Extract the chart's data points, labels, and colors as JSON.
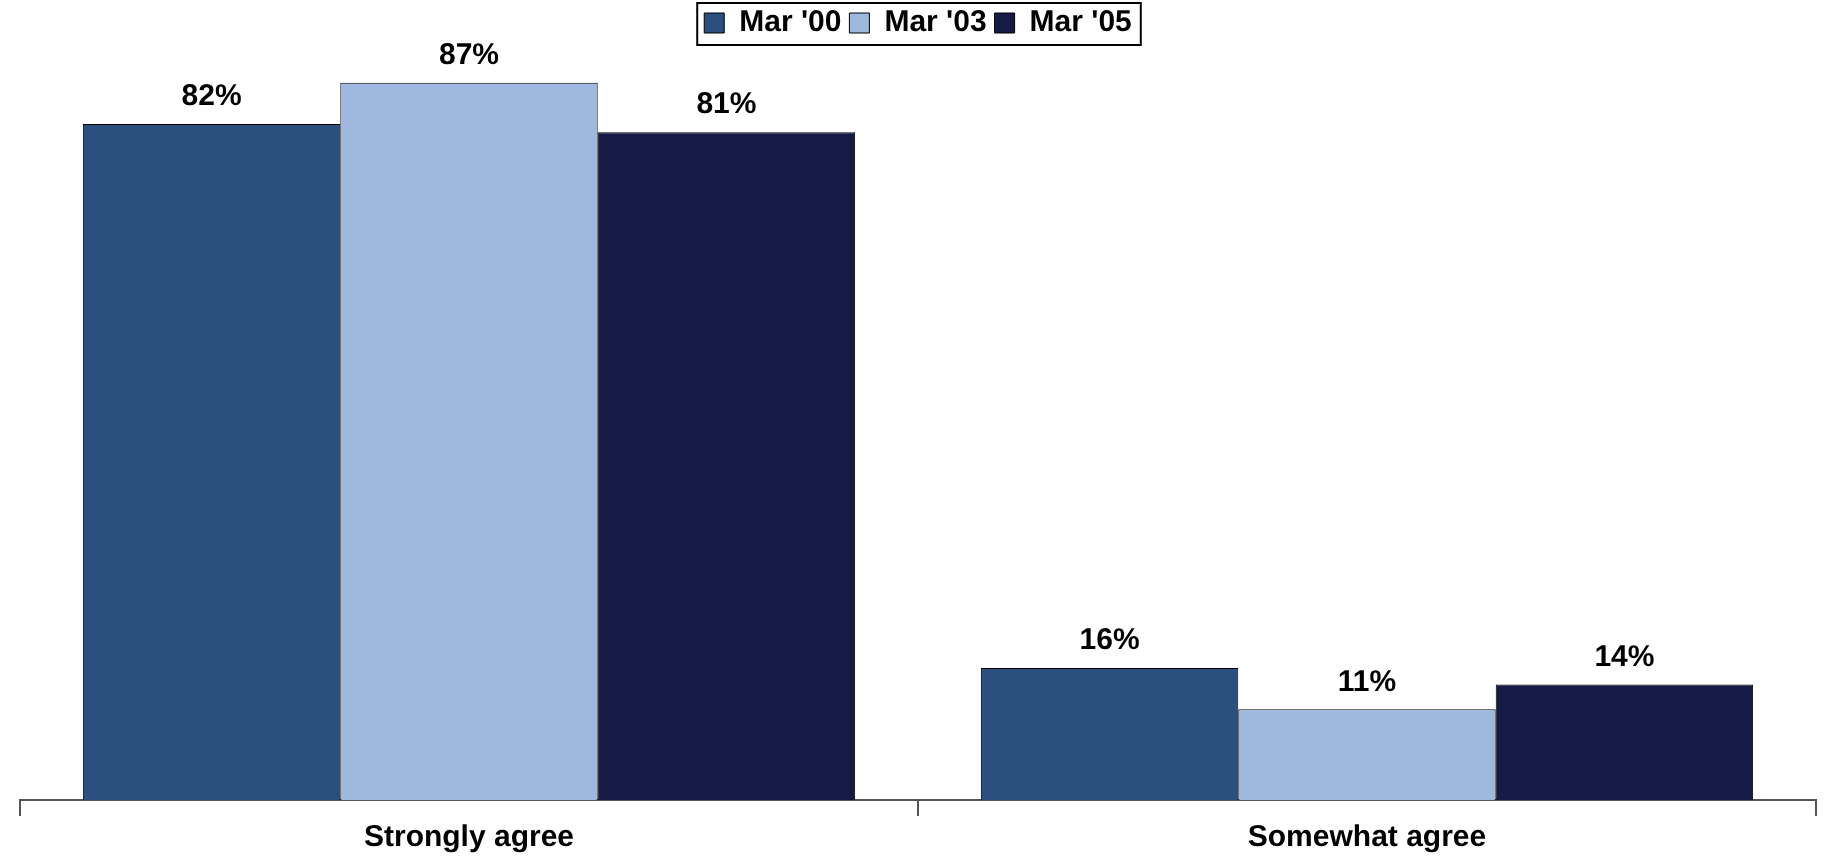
{
  "chart_data": {
    "type": "bar",
    "categories": [
      "Strongly agree",
      "Somewhat agree"
    ],
    "series": [
      {
        "name": "Mar '00",
        "color": "#2b4f7e",
        "values": [
          82,
          16
        ],
        "value_labels": [
          "82%",
          "16%"
        ]
      },
      {
        "name": "Mar '03",
        "color": "#9fb8de",
        "values": [
          87,
          11
        ],
        "value_labels": [
          "87%",
          "11%"
        ]
      },
      {
        "name": "Mar '05",
        "color": "#151b45",
        "values": [
          81,
          14
        ],
        "value_labels": [
          "81%",
          "14%"
        ]
      }
    ],
    "legend": "top",
    "grid": false,
    "tick_labels": "x"
  }
}
